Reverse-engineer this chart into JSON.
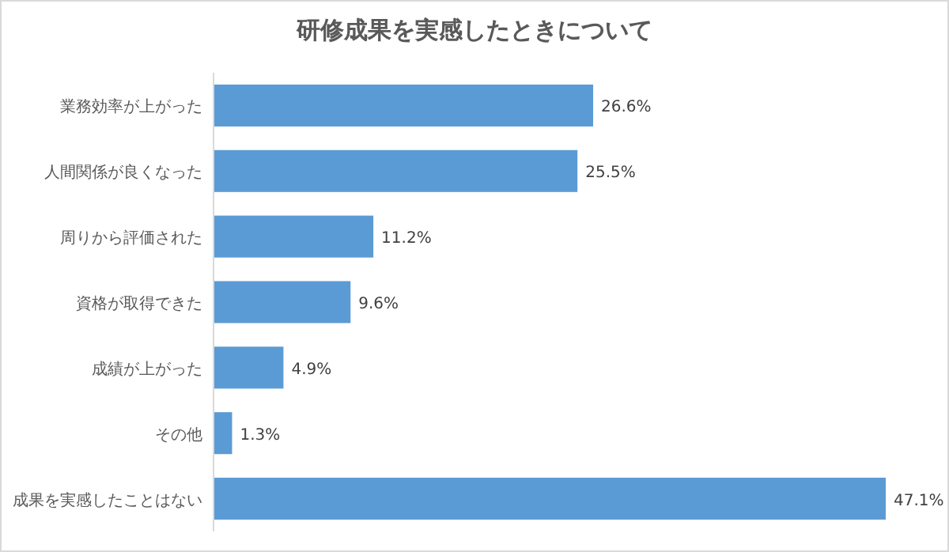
{
  "chart_data": {
    "type": "bar",
    "orientation": "horizontal",
    "title": "研修成果を実感したときについて",
    "categories": [
      "業務効率が上がった",
      "人間関係が良くなった",
      "周りから評価された",
      "資格が取得できた",
      "成績が上がった",
      "その他",
      "成果を実感したことはない"
    ],
    "values": [
      26.6,
      25.5,
      11.2,
      9.6,
      4.9,
      1.3,
      47.1
    ],
    "value_labels": [
      "26.6%",
      "25.5%",
      "11.2%",
      "9.6%",
      "4.9%",
      "1.3%",
      "47.1%"
    ],
    "color": "#5b9bd5"
  }
}
